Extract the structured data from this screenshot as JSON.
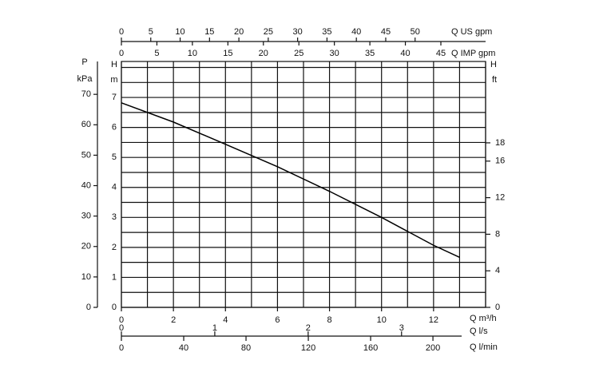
{
  "chart_data": {
    "type": "line",
    "xlabel": "Q m³/h",
    "ylabel": "H",
    "yunit": "m",
    "x": [
      0,
      2,
      4,
      6,
      8,
      10,
      12,
      13
    ],
    "series": [
      {
        "color": "#000000",
        "values": [
          6.82,
          6.18,
          5.44,
          4.69,
          3.87,
          3.0,
          2.07,
          1.67
        ]
      }
    ],
    "xlim": [
      0,
      14
    ],
    "xticks": [
      0,
      2,
      4,
      6,
      8,
      10,
      12
    ],
    "ylim": [
      0,
      8.2
    ],
    "yticks": [
      0,
      1,
      2,
      3,
      4,
      5,
      6,
      7
    ],
    "x_grid_step": 1,
    "y_grid_step": 0.5,
    "top_axes": [
      {
        "label": "Q US gpm",
        "lim": [
          0,
          62
        ],
        "ticks": [
          0,
          5,
          10,
          15,
          20,
          25,
          30,
          35,
          40,
          45,
          50
        ]
      },
      {
        "label": "Q IMP gpm",
        "lim": [
          0,
          51.3
        ],
        "ticks": [
          0,
          5,
          10,
          15,
          20,
          25,
          30,
          35,
          40,
          45
        ]
      }
    ],
    "bottom_axes": [
      {
        "label": "Q l/s",
        "lim": [
          0,
          3.9
        ],
        "ticks": [
          0,
          1,
          2,
          3
        ]
      },
      {
        "label": "Q l/min",
        "lim": [
          0,
          233.8
        ],
        "ticks": [
          0,
          40,
          80,
          120,
          160,
          200
        ]
      }
    ],
    "left_axis": {
      "label": "P",
      "unit": "kPa",
      "lim": [
        0,
        80.8
      ],
      "ticks": [
        0,
        10,
        20,
        30,
        40,
        50,
        60,
        70
      ]
    },
    "right_axis": {
      "label": "H",
      "unit": "ft",
      "lim": [
        0,
        26.9
      ],
      "ticks": [
        0,
        4,
        8,
        12,
        16,
        18
      ]
    }
  }
}
